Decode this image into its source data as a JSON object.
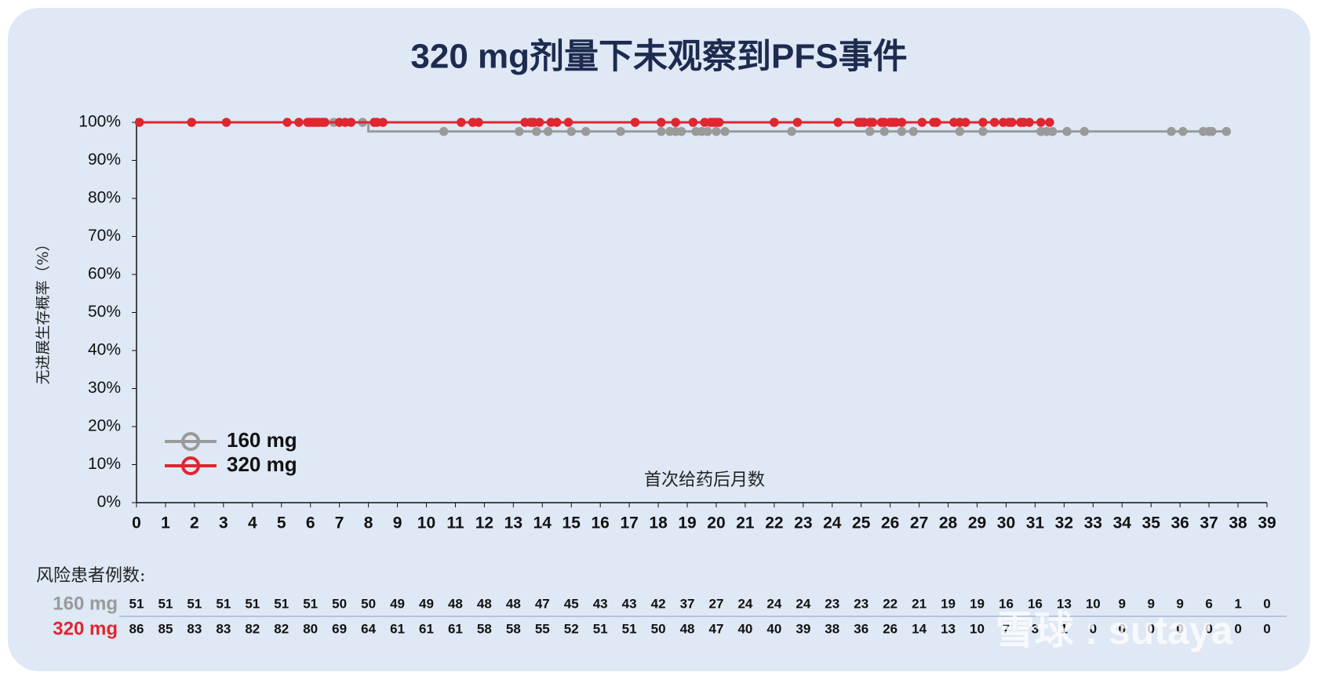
{
  "chart_data": {
    "type": "km",
    "title": "320 mg剂量下未观察到PFS事件",
    "y_label": "无进展生存概率（%）",
    "x_label": "首次给药后月数",
    "xlim": [
      0,
      39
    ],
    "xticks": [
      0,
      1,
      2,
      3,
      4,
      5,
      6,
      7,
      8,
      9,
      10,
      11,
      12,
      13,
      14,
      15,
      16,
      17,
      18,
      19,
      20,
      21,
      22,
      23,
      24,
      25,
      26,
      27,
      28,
      29,
      30,
      31,
      32,
      33,
      34,
      35,
      36,
      37,
      38,
      39
    ],
    "ylim": [
      0,
      100
    ],
    "yticks": [
      {
        "value": 0,
        "label": "0%"
      },
      {
        "value": 10,
        "label": "10%"
      },
      {
        "value": 20,
        "label": "20%"
      },
      {
        "value": 30,
        "label": "30%"
      },
      {
        "value": 40,
        "label": "40%"
      },
      {
        "value": 50,
        "label": "50%"
      },
      {
        "value": 60,
        "label": "60%"
      },
      {
        "value": 70,
        "label": "70%"
      },
      {
        "value": 80,
        "label": "80%"
      },
      {
        "value": 90,
        "label": "90%"
      },
      {
        "value": 100,
        "label": "100%"
      }
    ],
    "series": [
      {
        "name": "160 mg",
        "color": "#9a9a9a",
        "x": [
          0,
          8,
          8,
          37.6
        ],
        "values": [
          100,
          100,
          97.6,
          97.6
        ],
        "censor_x": [
          1.9,
          6.8,
          7.8,
          10.6,
          13.2,
          13.8,
          14.2,
          15,
          15.5,
          16.7,
          18.1,
          18.4,
          18.6,
          18.8,
          19.3,
          19.5,
          19.7,
          20,
          20.3,
          22.6,
          25.3,
          25.8,
          26.4,
          26.8,
          28.4,
          29.2,
          31.2,
          31.4,
          31.6,
          32.1,
          32.7,
          35.7,
          36.1,
          36.8,
          37,
          37.1,
          37.6
        ],
        "censor_values": [
          100,
          100,
          100,
          97.6,
          97.6,
          97.6,
          97.6,
          97.6,
          97.6,
          97.6,
          97.6,
          97.6,
          97.6,
          97.6,
          97.6,
          97.6,
          97.6,
          97.6,
          97.6,
          97.6,
          97.6,
          97.6,
          97.6,
          97.6,
          97.6,
          97.6,
          97.6,
          97.6,
          97.6,
          97.6,
          97.6,
          97.6,
          97.6,
          97.6,
          97.6,
          97.6,
          97.6
        ]
      },
      {
        "name": "320 mg",
        "color": "#e0262e",
        "x": [
          0,
          31.5
        ],
        "values": [
          100,
          100
        ],
        "censor_x": [
          0.1,
          1.9,
          3.1,
          5.2,
          5.6,
          5.9,
          6.0,
          6.1,
          6.2,
          6.3,
          6.4,
          6.5,
          7.0,
          7.2,
          7.4,
          8.2,
          8.3,
          8.5,
          11.2,
          11.6,
          11.8,
          13.4,
          13.6,
          13.7,
          13.9,
          14.3,
          14.5,
          14.9,
          17.2,
          18.1,
          18.6,
          19.2,
          19.6,
          19.8,
          19.9,
          20.0,
          20.1,
          22,
          22.8,
          24.2,
          24.9,
          25.0,
          25.1,
          25.3,
          25.4,
          25.7,
          25.8,
          26.0,
          26.1,
          26.2,
          26.4,
          27.1,
          27.5,
          27.6,
          28.2,
          28.4,
          28.6,
          29.2,
          29.6,
          29.9,
          30.1,
          30.2,
          30.5,
          30.6,
          30.8,
          31.2,
          31.5
        ],
        "censor_values": [
          100,
          100,
          100,
          100,
          100,
          100,
          100,
          100,
          100,
          100,
          100,
          100,
          100,
          100,
          100,
          100,
          100,
          100,
          100,
          100,
          100,
          100,
          100,
          100,
          100,
          100,
          100,
          100,
          100,
          100,
          100,
          100,
          100,
          100,
          100,
          100,
          100,
          100,
          100,
          100,
          100,
          100,
          100,
          100,
          100,
          100,
          100,
          100,
          100,
          100,
          100,
          100,
          100,
          100,
          100,
          100,
          100,
          100,
          100,
          100,
          100,
          100,
          100,
          100,
          100,
          100,
          100
        ]
      }
    ],
    "risk_table": {
      "title": "风险患者例数:",
      "rows": [
        {
          "label": "160 mg",
          "values": [
            51,
            51,
            51,
            51,
            51,
            51,
            51,
            50,
            50,
            49,
            49,
            48,
            48,
            48,
            47,
            45,
            43,
            43,
            42,
            37,
            27,
            24,
            24,
            24,
            23,
            23,
            22,
            21,
            19,
            19,
            16,
            16,
            13,
            10,
            9,
            9,
            9,
            6,
            1,
            0
          ]
        },
        {
          "label": "320 mg",
          "values": [
            86,
            85,
            83,
            83,
            82,
            82,
            80,
            69,
            64,
            61,
            61,
            61,
            58,
            58,
            55,
            52,
            51,
            51,
            50,
            48,
            47,
            40,
            40,
            39,
            38,
            36,
            26,
            14,
            13,
            10,
            7,
            3,
            1,
            0,
            0,
            0,
            0,
            0,
            0,
            0
          ]
        }
      ]
    },
    "watermark": "雪球 : sutaya"
  }
}
